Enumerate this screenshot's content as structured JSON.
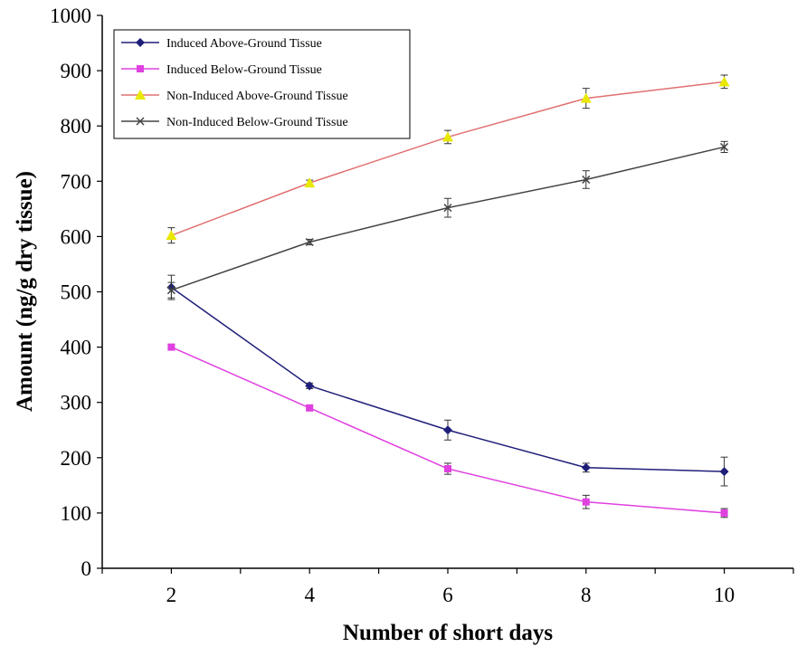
{
  "chart_data": {
    "type": "line",
    "xlabel": "Number of short days",
    "ylabel": "Amount (ng/g dry tissue)",
    "x": [
      2,
      4,
      6,
      8,
      10
    ],
    "xticks": [
      "2",
      "4",
      "6",
      "8",
      "10"
    ],
    "xlim": [
      1,
      11
    ],
    "ylim": [
      0,
      1000
    ],
    "yticks": [
      "0",
      "100",
      "200",
      "300",
      "400",
      "500",
      "600",
      "700",
      "800",
      "900",
      "1000"
    ],
    "grid": false,
    "legend_position": "top-left",
    "series": [
      {
        "name": "Induced Above-Ground Tissue",
        "values": [
          508,
          330,
          250,
          182,
          175
        ],
        "errors": [
          22,
          5,
          18,
          8,
          26
        ],
        "color": "#1f1f7a",
        "marker": "diamond"
      },
      {
        "name": "Induced Below-Ground Tissue",
        "values": [
          400,
          290,
          180,
          120,
          100
        ],
        "errors": [
          5,
          4,
          10,
          12,
          8
        ],
        "color": "#e040e0",
        "marker": "square"
      },
      {
        "name": "Non-Induced Above-Ground Tissue",
        "values": [
          602,
          697,
          780,
          850,
          880
        ],
        "errors": [
          14,
          5,
          12,
          18,
          12
        ],
        "color": "#e8e800",
        "line_color": "#e07070",
        "marker": "triangle"
      },
      {
        "name": "Non-Induced Below-Ground Tissue",
        "values": [
          503,
          590,
          652,
          703,
          762
        ],
        "errors": [
          14,
          5,
          17,
          16,
          10
        ],
        "color": "#444444",
        "marker": "x"
      }
    ]
  }
}
